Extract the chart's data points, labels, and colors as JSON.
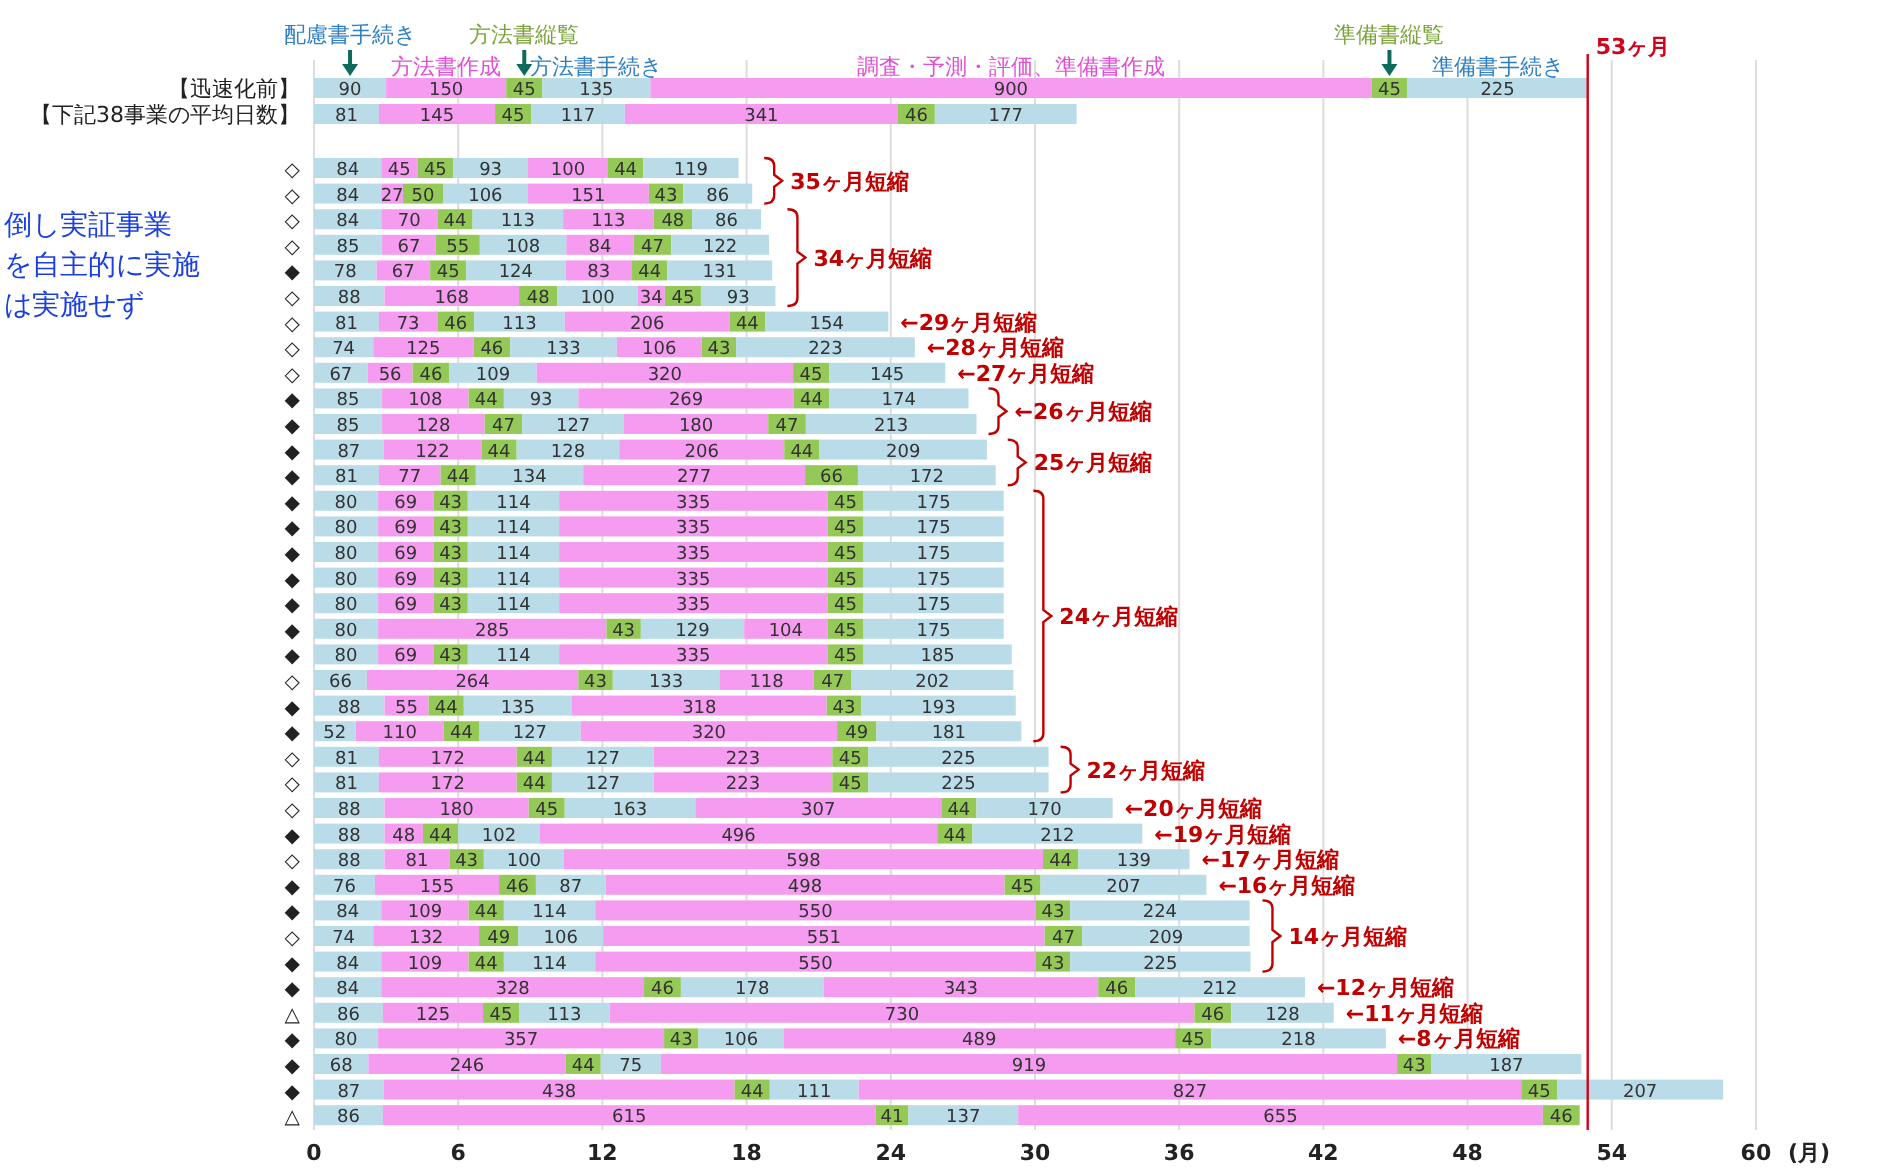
{
  "chart_data": {
    "type": "bar",
    "orientation": "horizontal",
    "stacked": true,
    "data_labels": true,
    "grid": "x",
    "categories": [
      "【迅速化前】",
      "【下記38事業の平均日数】",
      "◇",
      "◇",
      "◇",
      "◇",
      "◆",
      "◇",
      "◇",
      "◇",
      "◇",
      "◆",
      "◆",
      "◆",
      "◆",
      "◆",
      "◆",
      "◆",
      "◆",
      "◆",
      "◆",
      "◆",
      "◇",
      "◆",
      "◆",
      "◇",
      "◇",
      "◇",
      "◆",
      "◇",
      "◆",
      "◆",
      "◇",
      "◆",
      "◆",
      "△",
      "◆",
      "◆",
      "◆",
      "△"
    ],
    "series": [
      {
        "name": "配慮書手続き",
        "color": "#b9dce8",
        "values": [
          90,
          81,
          84,
          84,
          84,
          85,
          78,
          88,
          81,
          74,
          67,
          85,
          85,
          87,
          81,
          80,
          80,
          80,
          80,
          80,
          80,
          80,
          66,
          88,
          52,
          81,
          81,
          88,
          88,
          88,
          76,
          84,
          74,
          84,
          84,
          86,
          80,
          68,
          87,
          86
        ]
      },
      {
        "name": "方法書作成",
        "color": "#f59cf0",
        "values": [
          150,
          145,
          45,
          27,
          70,
          67,
          67,
          168,
          73,
          125,
          56,
          108,
          128,
          122,
          77,
          69,
          69,
          69,
          69,
          69,
          285,
          69,
          264,
          55,
          110,
          172,
          172,
          180,
          48,
          81,
          155,
          109,
          132,
          109,
          328,
          125,
          357,
          246,
          438,
          615
        ]
      },
      {
        "name": "方法書縦覧",
        "color": "#95c957",
        "values": [
          45,
          45,
          45,
          50,
          44,
          55,
          45,
          48,
          46,
          46,
          46,
          44,
          47,
          44,
          44,
          43,
          43,
          43,
          43,
          43,
          43,
          43,
          43,
          44,
          44,
          44,
          44,
          45,
          44,
          43,
          46,
          44,
          49,
          44,
          46,
          45,
          43,
          44,
          44,
          41
        ]
      },
      {
        "name": "方法書手続き",
        "color": "#b9dce8",
        "values": [
          135,
          117,
          93,
          106,
          113,
          108,
          124,
          100,
          113,
          133,
          109,
          93,
          127,
          128,
          134,
          114,
          114,
          114,
          114,
          114,
          129,
          114,
          133,
          135,
          127,
          127,
          127,
          163,
          102,
          100,
          87,
          114,
          106,
          114,
          178,
          113,
          106,
          75,
          111,
          137
        ]
      },
      {
        "name": "調査・予測・評価、準備書作成",
        "color": "#f59cf0",
        "values": [
          900,
          341,
          100,
          151,
          113,
          84,
          83,
          34,
          206,
          106,
          320,
          269,
          180,
          206,
          277,
          335,
          335,
          335,
          335,
          335,
          104,
          335,
          118,
          318,
          320,
          223,
          223,
          307,
          496,
          598,
          498,
          550,
          551,
          550,
          343,
          730,
          489,
          919,
          827,
          655
        ]
      },
      {
        "name": "準備書縦覧",
        "color": "#95c957",
        "values": [
          45,
          46,
          44,
          43,
          48,
          47,
          44,
          45,
          44,
          43,
          45,
          44,
          47,
          44,
          66,
          45,
          45,
          45,
          45,
          45,
          45,
          45,
          47,
          43,
          49,
          45,
          45,
          44,
          44,
          44,
          45,
          43,
          47,
          43,
          46,
          46,
          45,
          43,
          45,
          46
        ]
      },
      {
        "name": "準備書手続き",
        "color": "#b9dce8",
        "values": [
          225,
          177,
          119,
          86,
          86,
          122,
          131,
          93,
          154,
          223,
          145,
          174,
          213,
          209,
          172,
          175,
          175,
          175,
          175,
          175,
          175,
          185,
          202,
          193,
          181,
          225,
          225,
          170,
          212,
          139,
          207,
          224,
          209,
          225,
          212,
          128,
          218,
          187,
          207,
          null
        ]
      }
    ],
    "ref_lines": [
      {
        "axis": "x",
        "value": 1590,
        "label": "53ヶ月",
        "color": "#d0021b"
      }
    ],
    "annotations": [
      "倒し実証事業",
      "を自主的に実施",
      "は実施せず",
      "0",
      "6",
      "12",
      "18",
      "24",
      "30",
      "36",
      "42",
      "48",
      "54",
      "60",
      "(月)",
      "35ヶ月短縮",
      "34ヶ月短縮",
      "←29ヶ月短縮",
      "←28ヶ月短縮",
      "←27ヶ月短縮",
      "←26ヶ月短縮",
      "25ヶ月短縮",
      "24ヶ月短縮",
      "22ヶ月短縮",
      "←20ヶ月短縮",
      "←19ヶ月短縮",
      "←17ヶ月短縮",
      "←16ヶ月短縮",
      "14ヶ月短縮",
      "←12ヶ月短縮",
      "←11ヶ月短縮",
      "←8ヶ月短縮"
    ]
  }
}
